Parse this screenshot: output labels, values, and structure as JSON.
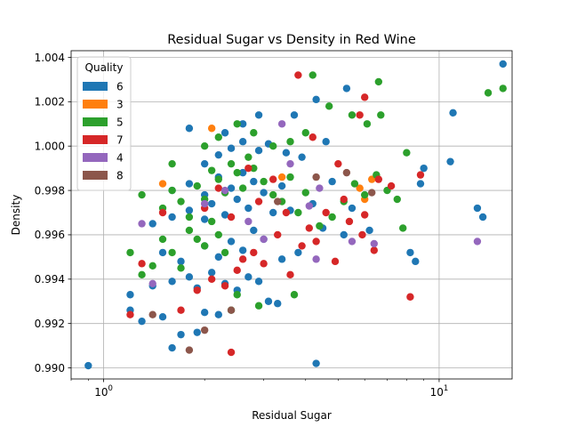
{
  "chart_data": {
    "type": "scatter",
    "title": "Residual Sugar vs Density in Red Wine",
    "xlabel": "Residual Sugar",
    "ylabel": "Density",
    "xscale": "log",
    "xlim": [
      0.8,
      16.5
    ],
    "ylim": [
      0.9895,
      1.0043
    ],
    "x_tick_labels": [
      "10^0",
      "10^1"
    ],
    "y_ticks": [
      "0.990",
      "0.992",
      "0.994",
      "0.996",
      "0.998",
      "1.000",
      "1.002",
      "1.004"
    ],
    "grid": true,
    "legend": {
      "title": "Quality",
      "placement": "top-left"
    },
    "series": [
      {
        "name": "6",
        "color": "#1f77b4",
        "points": [
          [
            0.9,
            0.9901
          ],
          [
            4.3,
            0.9902
          ],
          [
            1.6,
            0.9909
          ],
          [
            1.9,
            0.9916
          ],
          [
            1.7,
            0.9915
          ],
          [
            1.3,
            0.9921
          ],
          [
            1.2,
            0.9926
          ],
          [
            1.5,
            0.9923
          ],
          [
            2.0,
            0.9925
          ],
          [
            2.2,
            0.9924
          ],
          [
            1.2,
            0.9933
          ],
          [
            1.4,
            0.9937
          ],
          [
            1.6,
            0.9939
          ],
          [
            1.8,
            0.9941
          ],
          [
            1.9,
            0.9936
          ],
          [
            2.1,
            0.9943
          ],
          [
            2.3,
            0.9938
          ],
          [
            2.5,
            0.9935
          ],
          [
            2.7,
            0.9941
          ],
          [
            2.9,
            0.9939
          ],
          [
            3.1,
            0.993
          ],
          [
            3.3,
            0.9929
          ],
          [
            1.5,
            0.9952
          ],
          [
            1.7,
            0.9948
          ],
          [
            2.0,
            0.9955
          ],
          [
            2.2,
            0.995
          ],
          [
            2.4,
            0.9957
          ],
          [
            2.6,
            0.9953
          ],
          [
            2.8,
            0.9962
          ],
          [
            3.0,
            0.9958
          ],
          [
            3.4,
            0.9949
          ],
          [
            3.8,
            0.9952
          ],
          [
            4.5,
            0.9963
          ],
          [
            5.2,
            0.996
          ],
          [
            6.2,
            0.9962
          ],
          [
            8.2,
            0.9952
          ],
          [
            8.5,
            0.9948
          ],
          [
            1.4,
            0.9965
          ],
          [
            1.6,
            0.9968
          ],
          [
            1.8,
            0.9971
          ],
          [
            2.0,
            0.9967
          ],
          [
            2.1,
            0.9974
          ],
          [
            2.3,
            0.9969
          ],
          [
            2.5,
            0.9976
          ],
          [
            2.7,
            0.9972
          ],
          [
            3.2,
            0.997
          ],
          [
            3.6,
            0.9971
          ],
          [
            4.2,
            0.9974
          ],
          [
            5.5,
            0.9972
          ],
          [
            13.0,
            0.9972
          ],
          [
            13.5,
            0.9968
          ],
          [
            1.6,
            0.998
          ],
          [
            1.8,
            0.9983
          ],
          [
            2.0,
            0.9978
          ],
          [
            2.2,
            0.9986
          ],
          [
            2.4,
            0.9981
          ],
          [
            2.6,
            0.9988
          ],
          [
            2.8,
            0.9984
          ],
          [
            3.0,
            0.9979
          ],
          [
            3.4,
            0.9982
          ],
          [
            4.8,
            0.9984
          ],
          [
            6.5,
            0.9986
          ],
          [
            8.8,
            0.9983
          ],
          [
            9.0,
            0.999
          ],
          [
            2.0,
            0.9992
          ],
          [
            2.2,
            0.9996
          ],
          [
            2.4,
            0.9999
          ],
          [
            2.6,
            1.0002
          ],
          [
            2.9,
            0.9998
          ],
          [
            3.1,
            1.0001
          ],
          [
            3.5,
            0.9997
          ],
          [
            3.9,
            0.9995
          ],
          [
            4.6,
            1.0002
          ],
          [
            10.8,
            0.9993
          ],
          [
            1.8,
            1.0008
          ],
          [
            2.3,
            1.0006
          ],
          [
            2.6,
            1.001
          ],
          [
            2.9,
            1.0014
          ],
          [
            3.7,
            1.0014
          ],
          [
            4.3,
            1.0021
          ],
          [
            5.3,
            1.0026
          ],
          [
            11.0,
            1.0015
          ],
          [
            15.5,
            1.0037
          ]
        ]
      },
      {
        "name": "3",
        "color": "#ff7f0e",
        "points": [
          [
            1.5,
            0.9983
          ],
          [
            2.1,
            1.0008
          ],
          [
            3.4,
            0.9986
          ],
          [
            5.8,
            0.9981
          ],
          [
            6.3,
            0.9985
          ],
          [
            6.0,
            0.9976
          ]
        ]
      },
      {
        "name": "5",
        "color": "#2ca02c",
        "points": [
          [
            1.2,
            0.9952
          ],
          [
            1.3,
            0.9942
          ],
          [
            1.4,
            0.9946
          ],
          [
            1.5,
            0.9958
          ],
          [
            1.6,
            0.9952
          ],
          [
            1.7,
            0.9945
          ],
          [
            1.8,
            0.9962
          ],
          [
            1.9,
            0.9958
          ],
          [
            2.0,
            0.9955
          ],
          [
            2.1,
            0.9966
          ],
          [
            2.2,
            0.996
          ],
          [
            2.3,
            0.9952
          ],
          [
            2.4,
            0.9926
          ],
          [
            2.5,
            0.9933
          ],
          [
            1.3,
            0.9978
          ],
          [
            1.5,
            0.9972
          ],
          [
            1.6,
            0.998
          ],
          [
            1.7,
            0.9975
          ],
          [
            1.8,
            0.9968
          ],
          [
            1.9,
            0.9982
          ],
          [
            2.0,
            0.9976
          ],
          [
            2.1,
            0.9989
          ],
          [
            2.2,
            0.9985
          ],
          [
            2.3,
            0.9979
          ],
          [
            2.4,
            0.9992
          ],
          [
            2.5,
            0.9988
          ],
          [
            2.6,
            0.9981
          ],
          [
            2.7,
            0.9995
          ],
          [
            2.8,
            0.999
          ],
          [
            3.0,
            0.9984
          ],
          [
            3.2,
            0.9978
          ],
          [
            3.4,
            0.9975
          ],
          [
            3.6,
            0.9986
          ],
          [
            3.8,
            0.997
          ],
          [
            4.0,
            0.9979
          ],
          [
            4.4,
            0.9964
          ],
          [
            4.8,
            0.9968
          ],
          [
            5.2,
            0.9975
          ],
          [
            5.6,
            0.9983
          ],
          [
            6.0,
            0.9978
          ],
          [
            6.5,
            0.9987
          ],
          [
            7.0,
            0.998
          ],
          [
            7.5,
            0.9976
          ],
          [
            8.0,
            0.9997
          ],
          [
            7.8,
            0.9963
          ],
          [
            1.6,
            0.9992
          ],
          [
            2.0,
            1.0
          ],
          [
            2.2,
            1.0004
          ],
          [
            2.5,
            1.001
          ],
          [
            2.8,
            1.0006
          ],
          [
            3.2,
            1.0
          ],
          [
            3.6,
            1.0002
          ],
          [
            4.0,
            1.0006
          ],
          [
            4.7,
            1.0018
          ],
          [
            5.5,
            1.0014
          ],
          [
            6.1,
            1.001
          ],
          [
            6.7,
            1.0014
          ],
          [
            4.2,
            1.0032
          ],
          [
            6.6,
            1.0029
          ],
          [
            14.0,
            1.0024
          ],
          [
            15.5,
            1.0026
          ],
          [
            3.7,
            0.9933
          ],
          [
            2.9,
            0.9928
          ]
        ]
      },
      {
        "name": "7",
        "color": "#d62728",
        "points": [
          [
            1.2,
            0.9924
          ],
          [
            1.3,
            0.9947
          ],
          [
            1.7,
            0.9926
          ],
          [
            1.9,
            0.9935
          ],
          [
            2.1,
            0.994
          ],
          [
            2.3,
            0.9937
          ],
          [
            2.4,
            0.9907
          ],
          [
            2.5,
            0.9944
          ],
          [
            2.6,
            0.9949
          ],
          [
            2.8,
            0.9952
          ],
          [
            3.0,
            0.9947
          ],
          [
            3.3,
            0.996
          ],
          [
            3.6,
            0.9942
          ],
          [
            3.9,
            0.9955
          ],
          [
            4.3,
            0.9957
          ],
          [
            4.9,
            0.9948
          ],
          [
            5.4,
            0.9966
          ],
          [
            5.9,
            0.996
          ],
          [
            6.4,
            0.9953
          ],
          [
            8.2,
            0.9932
          ],
          [
            1.5,
            0.997
          ],
          [
            2.0,
            0.9972
          ],
          [
            2.4,
            0.9968
          ],
          [
            2.9,
            0.9975
          ],
          [
            3.5,
            0.997
          ],
          [
            4.1,
            0.9963
          ],
          [
            4.6,
            0.997
          ],
          [
            5.2,
            0.9976
          ],
          [
            6.0,
            0.9969
          ],
          [
            6.6,
            0.9985
          ],
          [
            7.2,
            0.9982
          ],
          [
            8.8,
            0.9987
          ],
          [
            2.2,
            0.9981
          ],
          [
            2.7,
            0.999
          ],
          [
            3.2,
            0.9985
          ],
          [
            4.2,
            1.0004
          ],
          [
            5.0,
            0.9992
          ],
          [
            6.0,
            1.0022
          ],
          [
            5.8,
            1.0014
          ],
          [
            3.8,
            1.0032
          ]
        ]
      },
      {
        "name": "4",
        "color": "#9467bd",
        "points": [
          [
            1.3,
            0.9965
          ],
          [
            1.4,
            0.9938
          ],
          [
            2.0,
            0.9974
          ],
          [
            2.3,
            0.998
          ],
          [
            2.7,
            0.9966
          ],
          [
            3.0,
            0.9958
          ],
          [
            3.4,
            1.001
          ],
          [
            3.6,
            0.9992
          ],
          [
            4.1,
            0.9973
          ],
          [
            4.4,
            0.9981
          ],
          [
            4.3,
            0.9949
          ],
          [
            5.5,
            0.9957
          ],
          [
            6.4,
            0.9956
          ],
          [
            13.0,
            0.9957
          ]
        ]
      },
      {
        "name": "8",
        "color": "#8c564b",
        "points": [
          [
            1.4,
            0.9924
          ],
          [
            1.8,
            0.9908
          ],
          [
            2.0,
            0.9917
          ],
          [
            2.4,
            0.9926
          ],
          [
            3.3,
            0.9975
          ],
          [
            4.3,
            0.9986
          ],
          [
            5.3,
            0.9988
          ],
          [
            6.3,
            0.9979
          ]
        ]
      }
    ]
  }
}
